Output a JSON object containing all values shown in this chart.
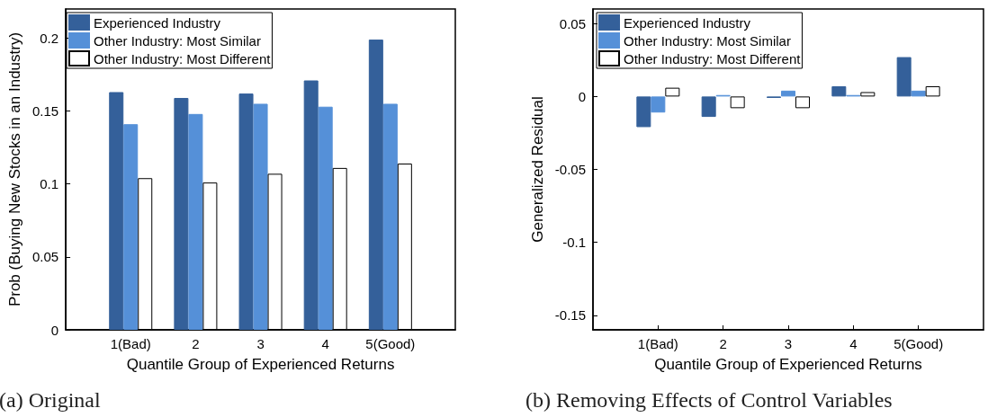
{
  "chart_data": [
    {
      "type": "bar",
      "title": "(a) Original",
      "xlabel": "Quantile Group of Experienced Returns",
      "ylabel": "Prob (Buying New Stocks in an Industry)",
      "categories": [
        "1(Bad)",
        "2",
        "3",
        "4",
        "5(Good)"
      ],
      "series": [
        {
          "name": "Experienced Industry",
          "color": "#34609a",
          "values": [
            0.163,
            0.159,
            0.162,
            0.171,
            0.199
          ]
        },
        {
          "name": "Other Industry: Most Similar",
          "color": "#5590d8",
          "values": [
            0.141,
            0.148,
            0.155,
            0.153,
            0.155
          ]
        },
        {
          "name": "Other Industry: Most Different",
          "color": "#ffffff",
          "values": [
            0.104,
            0.101,
            0.107,
            0.111,
            0.114
          ]
        }
      ],
      "ylim": [
        0,
        0.22
      ],
      "yticks": [
        0,
        0.05,
        0.1,
        0.15,
        0.2
      ],
      "grid": false,
      "legend": "top left"
    },
    {
      "type": "bar",
      "title": "(b) Removing Effects of Control Variables",
      "xlabel": "Quantile Group of Experienced Returns",
      "ylabel": "Generalized Residual",
      "categories": [
        "1(Bad)",
        "2",
        "3",
        "4",
        "5(Good)"
      ],
      "series": [
        {
          "name": "Experienced Industry",
          "color": "#34609a",
          "values": [
            -0.021,
            -0.014,
            -0.001,
            0.007,
            0.027
          ]
        },
        {
          "name": "Other Industry: Most Similar",
          "color": "#5590d8",
          "values": [
            -0.011,
            0.001,
            0.004,
            0.001,
            0.004
          ]
        },
        {
          "name": "Other Industry: Most Different",
          "color": "#ffffff",
          "values": [
            0.006,
            -0.008,
            -0.008,
            0.003,
            0.007
          ]
        }
      ],
      "ylim": [
        -0.16,
        0.06
      ],
      "yticks": [
        -0.15,
        -0.1,
        -0.05,
        0,
        0.05
      ],
      "grid": false,
      "legend": "top left"
    }
  ]
}
